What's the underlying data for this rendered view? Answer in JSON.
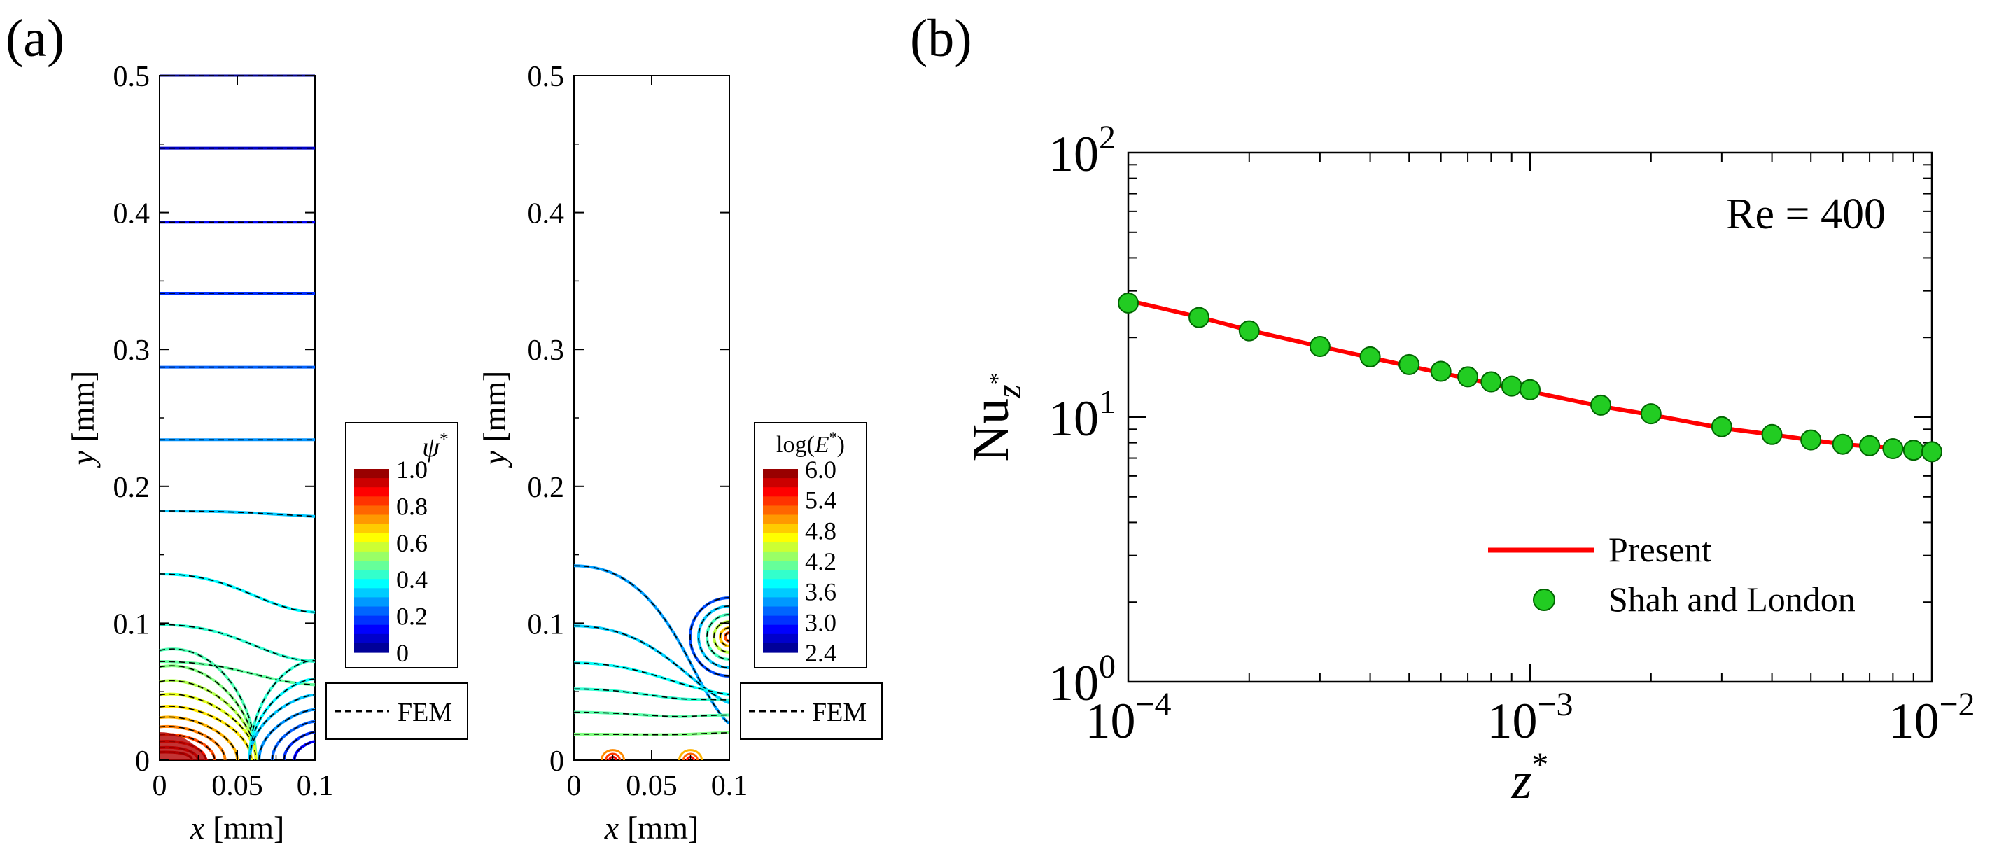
{
  "panel_a_label": "(a)",
  "panel_b_label": "(b)",
  "chart_data": [
    {
      "type": "contour",
      "panel": "(a) left",
      "field": "stream function",
      "xlabel_var": "x",
      "xlabel_unit": "[mm]",
      "ylabel_var": "y",
      "ylabel_unit": "[mm]",
      "xlim": [
        0,
        0.1
      ],
      "ylim": [
        0,
        0.5
      ],
      "x_ticks": [
        0,
        0.05,
        0.1
      ],
      "x_tick_labels": [
        "0",
        "0.05",
        "0.1"
      ],
      "y_ticks": [
        0,
        0.1,
        0.2,
        0.3,
        0.4,
        0.5
      ],
      "y_tick_labels": [
        "0",
        "0.1",
        "0.2",
        "0.3",
        "0.4",
        "0.5"
      ],
      "colorbar": {
        "title_symbol": "ψ",
        "title_sup": "*",
        "min": 0,
        "max": 1.0,
        "tick_values": [
          1.0,
          0.8,
          0.6,
          0.4,
          0.2,
          0
        ],
        "tick_labels": [
          "1.0",
          "0.8",
          "0.6",
          "0.4",
          "0.2",
          "0"
        ]
      },
      "legend": "FEM",
      "contour_levels_flat_y": [
        0.5,
        0.447,
        0.393,
        0.341,
        0.287,
        0.234
      ],
      "contour_levels_curved_y_at_x0": [
        0.182,
        0.136,
        0.099,
        0.072
      ]
    },
    {
      "type": "contour",
      "panel": "(a) right",
      "field": "log(E*)",
      "xlabel_var": "x",
      "xlabel_unit": "[mm]",
      "ylabel_var": "y",
      "ylabel_unit": "[mm]",
      "xlim": [
        0,
        0.1
      ],
      "ylim": [
        0,
        0.5
      ],
      "x_ticks": [
        0,
        0.05,
        0.1
      ],
      "x_tick_labels": [
        "0",
        "0.05",
        "0.1"
      ],
      "y_ticks": [
        0,
        0.1,
        0.2,
        0.3,
        0.4,
        0.5
      ],
      "y_tick_labels": [
        "0",
        "0.1",
        "0.2",
        "0.3",
        "0.4",
        "0.5"
      ],
      "colorbar": {
        "title_prefix": "log(",
        "title_symbol": "E",
        "title_sup": "*",
        "title_suffix": ")",
        "min": 2.4,
        "max": 6.0,
        "tick_values": [
          6.0,
          5.4,
          4.8,
          4.2,
          3.6,
          3.0,
          2.4
        ],
        "tick_labels": [
          "6.0",
          "5.4",
          "4.8",
          "4.2",
          "3.6",
          "3.0",
          "2.4"
        ]
      },
      "legend": "FEM"
    },
    {
      "type": "line+scatter",
      "panel": "(b)",
      "xscale": "log",
      "yscale": "log",
      "xlim": [
        0.0001,
        0.01
      ],
      "ylim": [
        1,
        100
      ],
      "x_ticks": [
        {
          "base": "10",
          "exp": "−4"
        },
        {
          "base": "10",
          "exp": "−3"
        },
        {
          "base": "10",
          "exp": "−2"
        }
      ],
      "y_ticks": [
        {
          "base": "10",
          "exp": "0"
        },
        {
          "base": "10",
          "exp": "1"
        },
        {
          "base": "10",
          "exp": "2"
        }
      ],
      "xlabel_var": "z",
      "xlabel_sup": "*",
      "ylabel_main": "Nu",
      "ylabel_sub": "z",
      "ylabel_sub_sup": "*",
      "annotation": "Re = 400",
      "legend_location": "lower-right",
      "series": [
        {
          "name": "Present",
          "kind": "line",
          "color": "#ff0000",
          "x": [
            0.0001,
            0.00015,
            0.0002,
            0.0003,
            0.0004,
            0.0005,
            0.0006,
            0.0007,
            0.0008,
            0.0009,
            0.001,
            0.0015,
            0.002,
            0.003,
            0.004,
            0.005,
            0.006,
            0.007,
            0.008,
            0.009,
            0.01
          ],
          "y": [
            27.6,
            23.9,
            21.3,
            18.5,
            16.8,
            15.6,
            14.7,
            14.0,
            13.4,
            12.9,
            12.5,
            11.0,
            10.2,
            9.1,
            8.6,
            8.2,
            7.9,
            7.75,
            7.65,
            7.55,
            7.5
          ]
        },
        {
          "name": "Shah and London",
          "kind": "scatter",
          "color": "#22cc22",
          "x": [
            0.0001,
            0.00015,
            0.0002,
            0.0003,
            0.0004,
            0.0005,
            0.0006,
            0.0007,
            0.0008,
            0.0009,
            0.001,
            0.0015,
            0.002,
            0.003,
            0.004,
            0.005,
            0.006,
            0.007,
            0.008,
            0.009,
            0.01
          ],
          "y": [
            27.0,
            23.8,
            21.2,
            18.5,
            16.9,
            15.8,
            14.9,
            14.2,
            13.6,
            13.1,
            12.7,
            11.1,
            10.3,
            9.2,
            8.6,
            8.2,
            7.9,
            7.8,
            7.6,
            7.5,
            7.4
          ]
        }
      ]
    }
  ]
}
